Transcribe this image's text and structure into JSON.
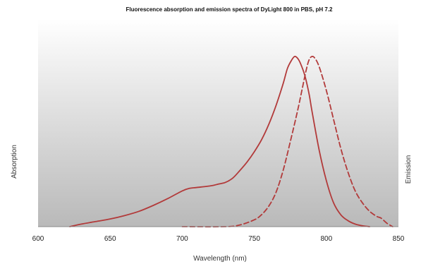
{
  "chart_data": {
    "type": "line",
    "title": "Fluorescence absorption and emission spectra of DyLight 800 in PBS, pH 7.2",
    "xlabel": "Wavelength (nm)",
    "ylabel": "Absorption",
    "y2label": "Emission",
    "xlim": [
      600,
      850
    ],
    "ylim": [
      0,
      1
    ],
    "xticks": [
      600,
      650,
      700,
      750,
      800,
      850
    ],
    "grid": false,
    "legend": "none",
    "background": "vertical-gradient",
    "series": [
      {
        "key": "absorption",
        "line_style": "solid",
        "color": "#b23a3a",
        "points": [
          [
            622,
            0.0
          ],
          [
            630,
            0.015
          ],
          [
            640,
            0.03
          ],
          [
            650,
            0.045
          ],
          [
            660,
            0.065
          ],
          [
            670,
            0.09
          ],
          [
            680,
            0.125
          ],
          [
            690,
            0.165
          ],
          [
            700,
            0.21
          ],
          [
            705,
            0.225
          ],
          [
            710,
            0.23
          ],
          [
            720,
            0.24
          ],
          [
            725,
            0.25
          ],
          [
            730,
            0.26
          ],
          [
            735,
            0.285
          ],
          [
            740,
            0.33
          ],
          [
            745,
            0.38
          ],
          [
            750,
            0.44
          ],
          [
            755,
            0.51
          ],
          [
            760,
            0.6
          ],
          [
            765,
            0.71
          ],
          [
            770,
            0.84
          ],
          [
            773,
            0.93
          ],
          [
            776,
            0.98
          ],
          [
            778,
            1.0
          ],
          [
            780,
            0.99
          ],
          [
            782,
            0.96
          ],
          [
            785,
            0.89
          ],
          [
            788,
            0.78
          ],
          [
            790,
            0.68
          ],
          [
            795,
            0.45
          ],
          [
            800,
            0.27
          ],
          [
            805,
            0.14
          ],
          [
            810,
            0.07
          ],
          [
            815,
            0.035
          ],
          [
            820,
            0.015
          ],
          [
            825,
            0.005
          ],
          [
            830,
            0.0
          ]
        ]
      },
      {
        "key": "emission",
        "line_style": "dashed",
        "color": "#b23a3a",
        "points": [
          [
            700,
            0.0
          ],
          [
            730,
            0.0
          ],
          [
            740,
            0.01
          ],
          [
            750,
            0.04
          ],
          [
            755,
            0.07
          ],
          [
            760,
            0.12
          ],
          [
            765,
            0.2
          ],
          [
            770,
            0.33
          ],
          [
            775,
            0.5
          ],
          [
            780,
            0.68
          ],
          [
            783,
            0.8
          ],
          [
            786,
            0.92
          ],
          [
            788,
            0.98
          ],
          [
            790,
            1.0
          ],
          [
            792,
            0.99
          ],
          [
            795,
            0.94
          ],
          [
            800,
            0.8
          ],
          [
            805,
            0.63
          ],
          [
            810,
            0.46
          ],
          [
            815,
            0.32
          ],
          [
            820,
            0.21
          ],
          [
            825,
            0.14
          ],
          [
            830,
            0.09
          ],
          [
            835,
            0.06
          ],
          [
            838,
            0.05
          ],
          [
            842,
            0.02
          ],
          [
            846,
            0.0
          ]
        ]
      }
    ]
  }
}
